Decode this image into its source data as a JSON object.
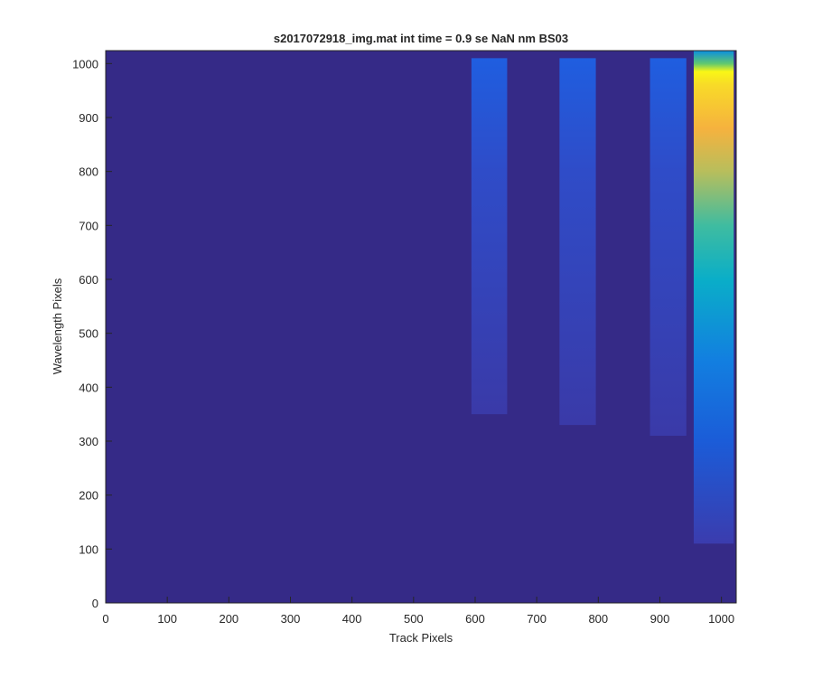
{
  "chart_data": {
    "type": "image",
    "title": "s2017072918_img.mat int time = 0.9 se  NaN nm BS03",
    "xlabel": "Track Pixels",
    "ylabel": "Wavelength Pixels",
    "xlim": [
      0,
      1024
    ],
    "ylim": [
      0,
      1024
    ],
    "xticks": [
      0,
      100,
      200,
      300,
      400,
      500,
      600,
      700,
      800,
      900,
      1000
    ],
    "yticks": [
      0,
      100,
      200,
      300,
      400,
      500,
      600,
      700,
      800,
      900,
      1000
    ],
    "background": "#352a87",
    "stripes": [
      {
        "x0": 594,
        "x1": 652,
        "y0": 350,
        "y1": 1010,
        "gradient": [
          {
            "y": 350,
            "color": "#3a3aa8"
          },
          {
            "y": 800,
            "color": "#2f4cc8"
          },
          {
            "y": 1010,
            "color": "#1f5ee0"
          }
        ]
      },
      {
        "x0": 737,
        "x1": 796,
        "y0": 330,
        "y1": 1010,
        "gradient": [
          {
            "y": 330,
            "color": "#3a3aa8"
          },
          {
            "y": 800,
            "color": "#2f4cc8"
          },
          {
            "y": 1010,
            "color": "#1f5ee0"
          }
        ]
      },
      {
        "x0": 884,
        "x1": 943,
        "y0": 310,
        "y1": 1010,
        "gradient": [
          {
            "y": 310,
            "color": "#3a3aa8"
          },
          {
            "y": 800,
            "color": "#2f4cc8"
          },
          {
            "y": 1010,
            "color": "#1f5ee0"
          }
        ]
      },
      {
        "x0": 955,
        "x1": 1020,
        "y0": 110,
        "y1": 1024,
        "gradient": [
          {
            "y": 110,
            "color": "#3b3cae"
          },
          {
            "y": 300,
            "color": "#1b5cd8"
          },
          {
            "y": 450,
            "color": "#127fe0"
          },
          {
            "y": 600,
            "color": "#0aaec8"
          },
          {
            "y": 700,
            "color": "#3fbca0"
          },
          {
            "y": 800,
            "color": "#b8be5c"
          },
          {
            "y": 880,
            "color": "#f6b23e"
          },
          {
            "y": 960,
            "color": "#f8da28"
          },
          {
            "y": 985,
            "color": "#f9f616"
          },
          {
            "y": 1000,
            "color": "#60c870"
          },
          {
            "y": 1024,
            "color": "#0a8ee0"
          }
        ]
      }
    ]
  }
}
